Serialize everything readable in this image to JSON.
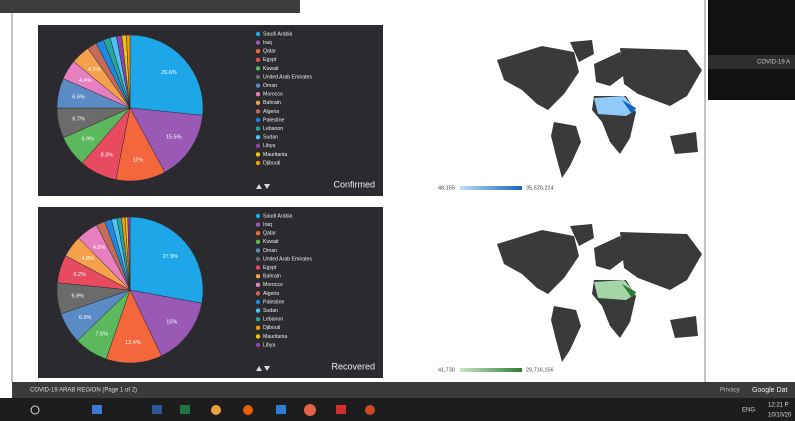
{
  "chart_data": [
    {
      "type": "pie",
      "title": "Confirmed",
      "categories": [
        "Saudi Arabia",
        "Iraq",
        "Qatar",
        "Egypt",
        "Kuwait",
        "United Arab Emirates",
        "Oman",
        "Morocco",
        "Bahrain",
        "Algeria",
        "Palestine",
        "Lebanon",
        "Sudan",
        "Libya",
        "Mauritania",
        "Djibouti"
      ],
      "values": [
        26.6,
        15.5,
        11,
        8.3,
        6.9,
        6.7,
        6.6,
        4.4,
        4.2,
        2.1,
        1.8,
        1.5,
        1.4,
        1.2,
        1.0,
        0.8
      ],
      "value_labels": [
        "26.6%",
        "15.5%",
        "11%",
        "8.3%",
        "6.9%",
        "6.7%",
        "6.6%",
        "4.4%",
        "4.2%",
        null,
        null,
        null,
        null,
        null,
        null,
        null
      ],
      "colors": [
        "#1ea7e8",
        "#9b59b6",
        "#f4663b",
        "#e84a5f",
        "#5cb85c",
        "#6b6b6b",
        "#5b8bc4",
        "#e87fc0",
        "#f5a04a",
        "#c66a5a",
        "#1e88e5",
        "#26a69a",
        "#4fc3f7",
        "#8e44ad",
        "#f1c40f",
        "#f39c12"
      ]
    },
    {
      "type": "pie",
      "title": "Recovered",
      "categories": [
        "Saudi Arabia",
        "Iraq",
        "Qatar",
        "Kuwait",
        "Oman",
        "United Arab Emirates",
        "Egypt",
        "Bahrain",
        "Morocco",
        "Algeria",
        "Palestine",
        "Sudan",
        "Lebanon",
        "Djibouti",
        "Mauritania",
        "Libya"
      ],
      "values": [
        27.9,
        15,
        12.4,
        7.5,
        6.9,
        6.9,
        6.2,
        4.8,
        4.8,
        2.0,
        1.5,
        1.2,
        1.0,
        0.8,
        0.6,
        0.5
      ],
      "value_labels": [
        "27.9%",
        "15%",
        "12.4%",
        "7.5%",
        "6.9%",
        "6.9%",
        "6.2%",
        "4.8%",
        "4.8%",
        null,
        null,
        null,
        null,
        null,
        null,
        null
      ],
      "colors": [
        "#1ea7e8",
        "#9b59b6",
        "#f4663b",
        "#5cb85c",
        "#5b8bc4",
        "#6b6b6b",
        "#e84a5f",
        "#f5a04a",
        "#e87fc0",
        "#c66a5a",
        "#1e88e5",
        "#4fc3f7",
        "#26a69a",
        "#f39c12",
        "#f1c40f",
        "#8e44ad"
      ]
    }
  ],
  "maps": [
    {
      "min_label": "48,155",
      "max_label": "35,520,224",
      "color": "#1565c0",
      "light": "#bbdefb"
    },
    {
      "min_label": "41,730",
      "max_label": "29,716,156",
      "color": "#2e7d32",
      "light": "#c8e6c9"
    }
  ],
  "report_bar": {
    "page": "COVID-19 ARAB REGION (Page 1 of 2)",
    "privacy": "Privacy",
    "brand": "Google Dat"
  },
  "side_window": {
    "title": "COVID-19 A"
  },
  "taskbar": {
    "lang": "ENG",
    "time": "12:21 P",
    "date": "10/10/20"
  }
}
